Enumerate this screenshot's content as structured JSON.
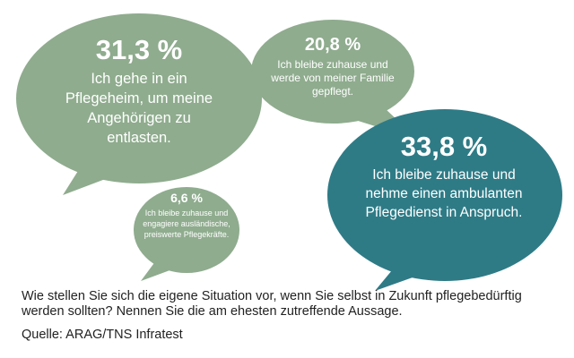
{
  "chart_data": {
    "type": "pie",
    "unit": "%",
    "colors": {
      "standard": "#8fac8e",
      "highlight": "#2e7b86"
    },
    "items": [
      {
        "value": 31.3,
        "value_label": "31,3 %",
        "label": "Ich gehe in ein Pflegeheim, um meine Angehörigen zu entlasten.",
        "color": "#8fac8e"
      },
      {
        "value": 20.8,
        "value_label": "20,8 %",
        "label": "Ich bleibe zuhause und werde von meiner Familie gepflegt.",
        "color": "#8fac8e"
      },
      {
        "value": 33.8,
        "value_label": "33,8 %",
        "label": "Ich bleibe zuhause und nehme einen ambulanten Pflegedienst in Anspruch.",
        "color": "#2e7b86"
      },
      {
        "value": 6.6,
        "value_label": "6,6 %",
        "label": "Ich bleibe zuhause und engagiere ausländische, preiswerte Pflegekräfte.",
        "color": "#8fac8e"
      }
    ],
    "question": "Wie stellen Sie sich die eigene Situation vor, wenn Sie selbst in Zukunft pflegebedürftig werden sollten? Nennen Sie die am ehesten zutreffende Aussage.",
    "source": "Quelle: ARAG/TNS Infratest"
  }
}
